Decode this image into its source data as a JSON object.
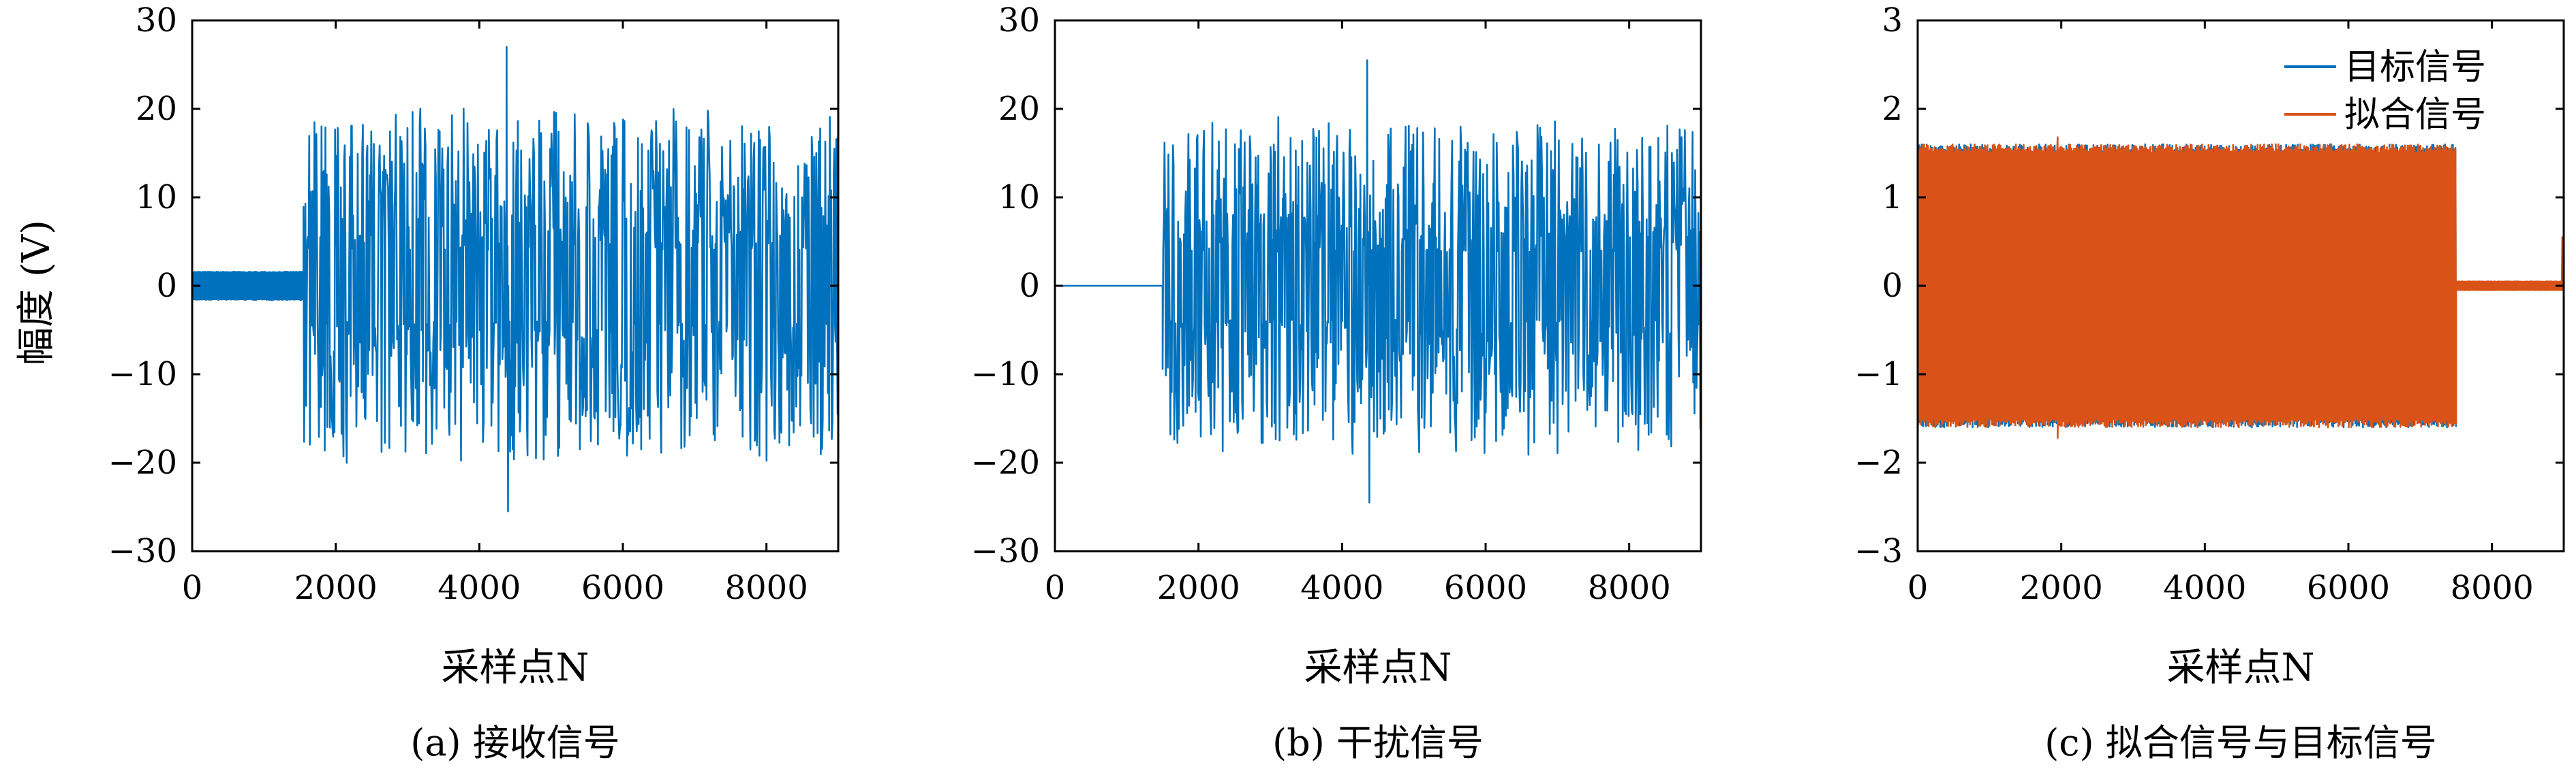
{
  "chart_data": [
    {
      "type": "line",
      "caption": "(a) 接收信号",
      "xlabel": "采样点N",
      "ylabel": "幅度 (V)",
      "xlim": [
        0,
        9000
      ],
      "ylim": [
        -30,
        30
      ],
      "xticks": [
        "0",
        "2000",
        "4000",
        "6000",
        "8000"
      ],
      "yticks": [
        "30",
        "20",
        "10",
        "0",
        "−10",
        "−20",
        "−30"
      ],
      "grid": false,
      "series": [
        {
          "color": "#0072BD",
          "segments": [
            {
              "x_start": 0,
              "x_end": 1550,
              "envelope": 1.6,
              "kind": "band"
            },
            {
              "x_start": 1550,
              "x_end": 9000,
              "envelope": 27,
              "kind": "noise"
            }
          ],
          "peak_max": {
            "x": 4380,
            "y": 27
          },
          "peak_min": {
            "x": 4400,
            "y": -25.5
          }
        }
      ]
    },
    {
      "type": "line",
      "caption": "(b) 干扰信号",
      "xlabel": "采样点N",
      "ylabel": "",
      "xlim": [
        0,
        9000
      ],
      "ylim": [
        -30,
        30
      ],
      "xticks": [
        "0",
        "2000",
        "4000",
        "6000",
        "8000"
      ],
      "yticks": [
        "30",
        "20",
        "10",
        "0",
        "−10",
        "−20",
        "−30"
      ],
      "grid": false,
      "series": [
        {
          "color": "#0072BD",
          "segments": [
            {
              "x_start": 0,
              "x_end": 1500,
              "envelope": 0,
              "kind": "flat"
            },
            {
              "x_start": 1500,
              "x_end": 9000,
              "envelope": 25.5,
              "kind": "noise"
            }
          ],
          "peak_max": {
            "x": 4350,
            "y": 25.5
          },
          "peak_min": {
            "x": 4380,
            "y": -24.5
          }
        }
      ]
    },
    {
      "type": "line",
      "caption": "(c) 拟合信号与目标信号",
      "xlabel": "采样点N",
      "ylabel": "",
      "xlim": [
        0,
        9000
      ],
      "ylim": [
        -3,
        3
      ],
      "xticks": [
        "0",
        "2000",
        "4000",
        "6000",
        "8000"
      ],
      "yticks": [
        "3",
        "2",
        "1",
        "0",
        "−1",
        "−2",
        "−3"
      ],
      "grid": false,
      "legend_position": "top-right",
      "series": [
        {
          "name": "目标信号",
          "color": "#0072BD",
          "segments": [
            {
              "x_start": 0,
              "x_end": 7500,
              "envelope": 1.6,
              "kind": "band"
            },
            {
              "x_start": 7500,
              "x_end": 9000,
              "envelope": 0,
              "kind": "flat"
            }
          ]
        },
        {
          "name": "拟合信号",
          "color": "#D95319",
          "segments": [
            {
              "x_start": 0,
              "x_end": 7500,
              "envelope": 1.6,
              "kind": "band"
            },
            {
              "x_start": 7500,
              "x_end": 9000,
              "envelope": 0.05,
              "kind": "band"
            }
          ],
          "peak_max": {
            "x": 1950,
            "y": 1.68
          },
          "peak_min": {
            "x": 1950,
            "y": -1.72
          },
          "end_spike": {
            "x": 8980,
            "y": 0.55
          }
        }
      ]
    }
  ]
}
